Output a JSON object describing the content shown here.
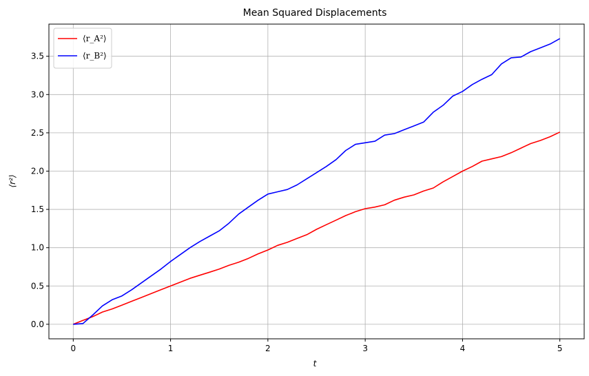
{
  "chart_data": {
    "type": "line",
    "title": "Mean Squared Displacements",
    "xlabel": "t",
    "ylabel": "⟨r²⟩",
    "xlim": [
      -0.25,
      5.25
    ],
    "ylim": [
      -0.19,
      3.92
    ],
    "xticks": [
      0,
      1,
      2,
      3,
      4,
      5
    ],
    "xtick_labels": [
      "0",
      "1",
      "2",
      "3",
      "4",
      "5"
    ],
    "yticks": [
      0.0,
      0.5,
      1.0,
      1.5,
      2.0,
      2.5,
      3.0,
      3.5
    ],
    "ytick_labels": [
      "0.0",
      "0.5",
      "1.0",
      "1.5",
      "2.0",
      "2.5",
      "3.0",
      "3.5"
    ],
    "grid": true,
    "legend_position": "top-left",
    "series": [
      {
        "name": "⟨r_A²⟩",
        "color": "#ff0000",
        "x": [
          0,
          0.1,
          0.2,
          0.3,
          0.4,
          0.5,
          0.6,
          0.7,
          0.8,
          0.9,
          1.0,
          1.1,
          1.2,
          1.3,
          1.4,
          1.5,
          1.6,
          1.7,
          1.8,
          1.9,
          2.0,
          2.1,
          2.2,
          2.3,
          2.4,
          2.5,
          2.6,
          2.7,
          2.8,
          2.9,
          3.0,
          3.1,
          3.2,
          3.3,
          3.4,
          3.5,
          3.6,
          3.7,
          3.8,
          3.9,
          4.0,
          4.1,
          4.2,
          4.3,
          4.4,
          4.5,
          4.6,
          4.7,
          4.8,
          4.9,
          5.0
        ],
        "y": [
          0,
          0.05,
          0.1,
          0.16,
          0.2,
          0.25,
          0.3,
          0.35,
          0.4,
          0.45,
          0.5,
          0.55,
          0.6,
          0.64,
          0.68,
          0.72,
          0.77,
          0.81,
          0.86,
          0.92,
          0.97,
          1.03,
          1.07,
          1.12,
          1.17,
          1.24,
          1.3,
          1.36,
          1.42,
          1.47,
          1.51,
          1.53,
          1.56,
          1.62,
          1.66,
          1.69,
          1.74,
          1.78,
          1.86,
          1.93,
          2.0,
          2.06,
          2.13,
          2.16,
          2.19,
          2.24,
          2.3,
          2.36,
          2.4,
          2.45,
          2.51
        ]
      },
      {
        "name": "⟨r_B²⟩",
        "color": "#0000ff",
        "x": [
          0,
          0.1,
          0.2,
          0.3,
          0.4,
          0.5,
          0.6,
          0.7,
          0.8,
          0.9,
          1.0,
          1.1,
          1.2,
          1.3,
          1.4,
          1.5,
          1.6,
          1.7,
          1.8,
          1.9,
          2.0,
          2.1,
          2.2,
          2.3,
          2.4,
          2.5,
          2.6,
          2.7,
          2.8,
          2.9,
          3.0,
          3.1,
          3.2,
          3.3,
          3.4,
          3.5,
          3.6,
          3.7,
          3.8,
          3.9,
          4.0,
          4.1,
          4.2,
          4.3,
          4.4,
          4.5,
          4.6,
          4.7,
          4.8,
          4.9,
          5.0
        ],
        "y": [
          0,
          0.01,
          0.12,
          0.24,
          0.32,
          0.37,
          0.45,
          0.54,
          0.63,
          0.72,
          0.82,
          0.91,
          1.0,
          1.08,
          1.15,
          1.22,
          1.32,
          1.44,
          1.53,
          1.62,
          1.7,
          1.73,
          1.76,
          1.82,
          1.9,
          1.98,
          2.06,
          2.15,
          2.27,
          2.35,
          2.37,
          2.39,
          2.47,
          2.49,
          2.54,
          2.59,
          2.64,
          2.77,
          2.86,
          2.98,
          3.04,
          3.13,
          3.2,
          3.26,
          3.4,
          3.48,
          3.49,
          3.56,
          3.61,
          3.66,
          3.73
        ]
      }
    ]
  }
}
